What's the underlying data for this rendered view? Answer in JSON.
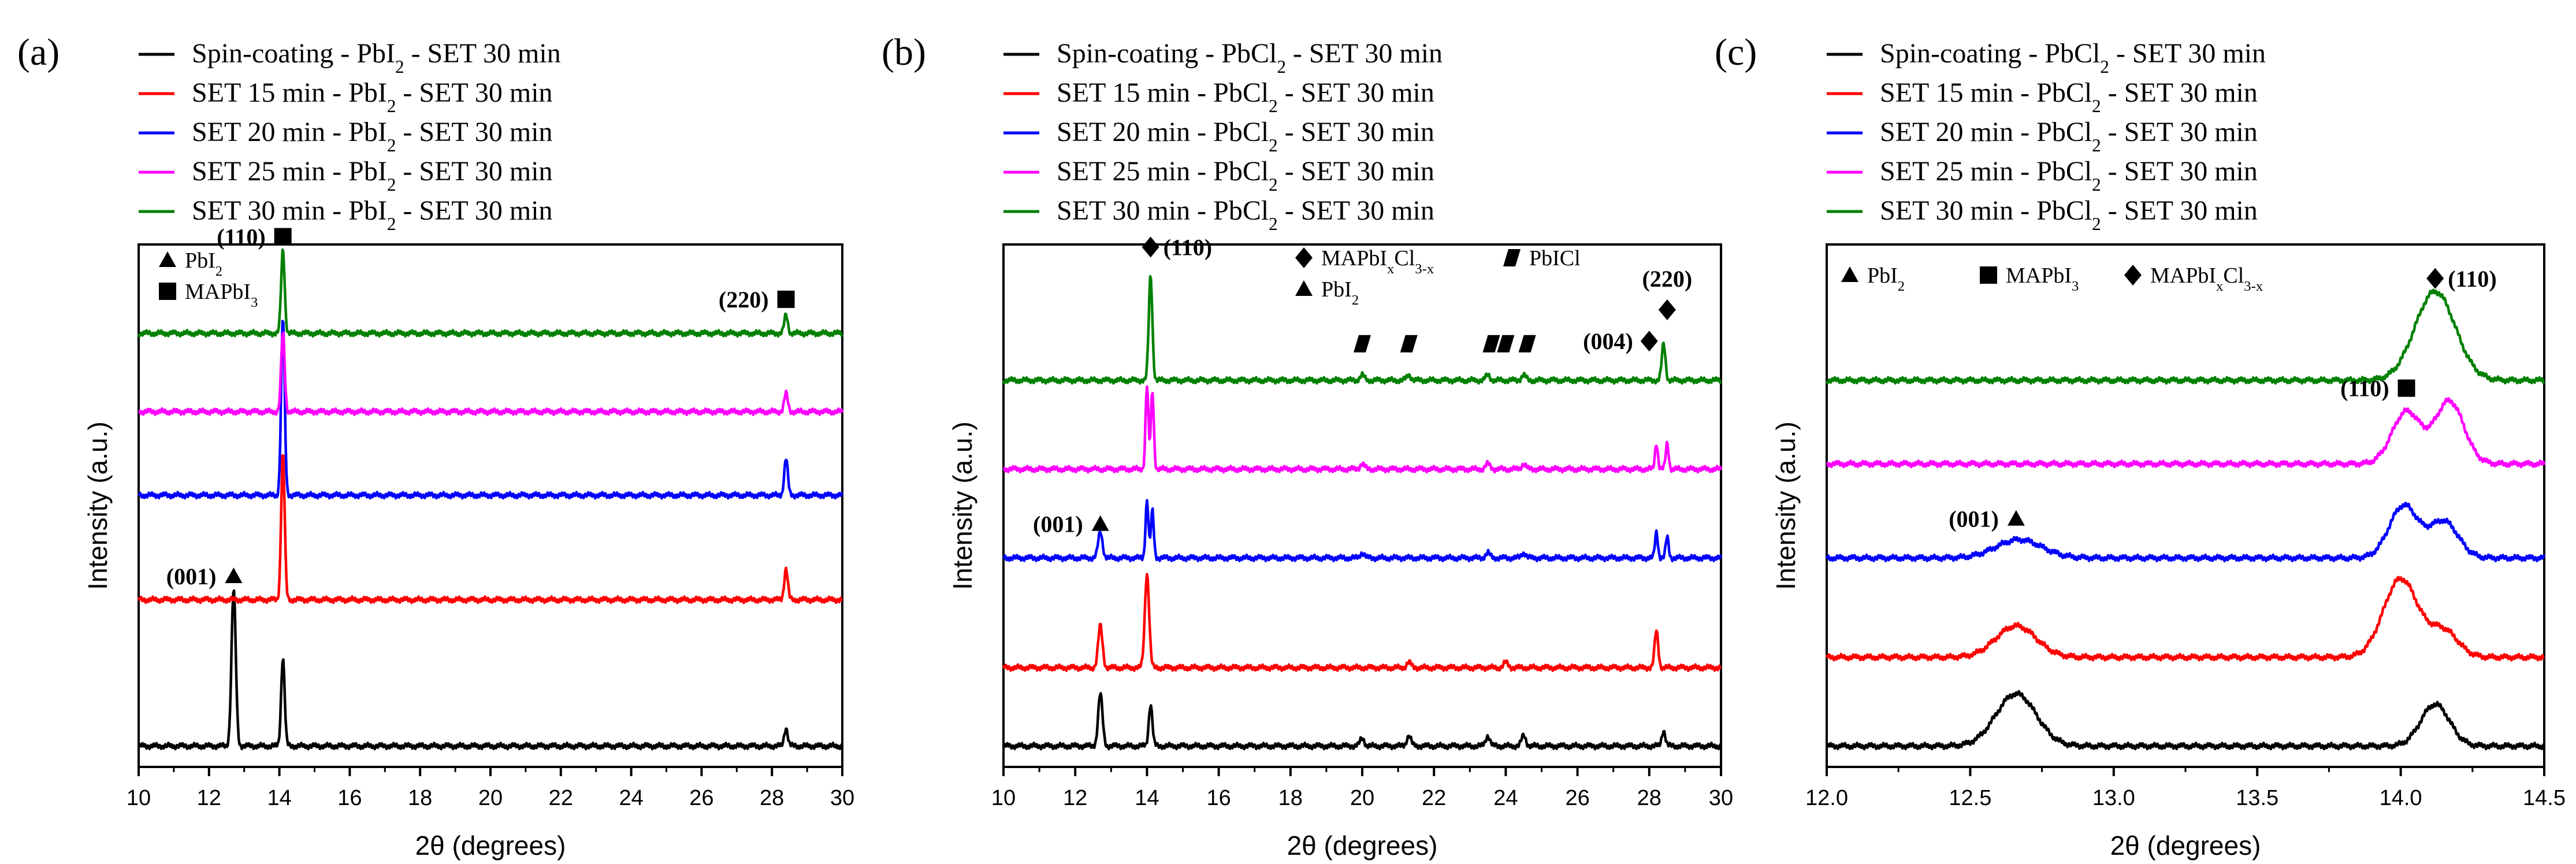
{
  "figure": {
    "domain": "XRD comparison figure"
  },
  "colors": {
    "black": "#000000",
    "red": "#ff0000",
    "blue": "#0000ff",
    "magenta": "#ff00ff",
    "green": "#008000"
  },
  "chart_data": [
    {
      "type": "line",
      "panel_label": "(a)",
      "xlabel": "2θ (degrees)",
      "ylabel": "Intensity (a.u.)",
      "xlim": [
        10,
        30
      ],
      "xticks": [
        "10",
        "12",
        "14",
        "16",
        "18",
        "20",
        "22",
        "24",
        "26",
        "28",
        "30"
      ],
      "series": [
        {
          "name": "Spin-coating - PbI",
          "sub": "2",
          "tail": " - SET 30 min",
          "color": "#000000",
          "peaks": [
            [
              12.7,
              0.3,
              0.06
            ],
            [
              14.1,
              0.17,
              0.05
            ],
            [
              28.4,
              0.035,
              0.05
            ]
          ]
        },
        {
          "name": "SET 15 min - PbI",
          "sub": "2",
          "tail": " - SET 30 min",
          "color": "#ff0000",
          "peaks": [
            [
              14.1,
              0.28,
              0.05
            ],
            [
              28.4,
              0.06,
              0.05
            ]
          ]
        },
        {
          "name": "SET 20 min - PbI",
          "sub": "2",
          "tail": " - SET 30 min",
          "color": "#0000ff",
          "peaks": [
            [
              14.1,
              0.34,
              0.05
            ],
            [
              28.4,
              0.07,
              0.05
            ]
          ]
        },
        {
          "name": "SET 25 min - PbI",
          "sub": "2",
          "tail": " - SET 30 min",
          "color": "#ff00ff",
          "peaks": [
            [
              14.1,
              0.15,
              0.05
            ],
            [
              28.4,
              0.035,
              0.05
            ]
          ]
        },
        {
          "name": "SET 30 min - PbI",
          "sub": "2",
          "tail": " - SET 30 min",
          "color": "#008000",
          "peaks": [
            [
              14.1,
              0.16,
              0.05
            ],
            [
              28.4,
              0.035,
              0.05
            ]
          ]
        }
      ],
      "offsets": [
        0.0,
        0.28,
        0.48,
        0.64,
        0.79
      ],
      "legend": {
        "items": [
          {
            "marker": "triangle",
            "text": "PbI",
            "sub": "2"
          },
          {
            "marker": "square",
            "text": "MAPbI",
            "sub": "3"
          }
        ]
      },
      "annotations": [
        {
          "text": "(110)",
          "marker": "square",
          "x": 14.1,
          "y": 0.975
        },
        {
          "text": "(220)",
          "marker": "square",
          "x": 28.4,
          "y": 0.855
        },
        {
          "text": "(001)",
          "marker": "triangle",
          "x": 12.7,
          "y": 0.325
        }
      ]
    },
    {
      "type": "line",
      "panel_label": "(b)",
      "xlabel": "2θ (degrees)",
      "ylabel": "Intensity (a.u.)",
      "xlim": [
        10,
        30
      ],
      "xticks": [
        "10",
        "12",
        "14",
        "16",
        "18",
        "20",
        "22",
        "24",
        "26",
        "28",
        "30"
      ],
      "series": [
        {
          "name": "Spin-coating - PbCl",
          "sub": "2",
          "tail": " - SET 30 min",
          "color": "#000000",
          "peaks": [
            [
              12.7,
              0.1,
              0.06
            ],
            [
              14.1,
              0.08,
              0.05
            ],
            [
              20.0,
              0.015,
              0.06
            ],
            [
              21.3,
              0.02,
              0.06
            ],
            [
              23.5,
              0.02,
              0.06
            ],
            [
              24.5,
              0.02,
              0.06
            ],
            [
              28.4,
              0.03,
              0.05
            ]
          ]
        },
        {
          "name": "SET 15 min - PbCl",
          "sub": "2",
          "tail": " - SET 30 min",
          "color": "#ff0000",
          "peaks": [
            [
              12.7,
              0.08,
              0.06
            ],
            [
              14.0,
              0.18,
              0.06
            ],
            [
              21.3,
              0.01,
              0.06
            ],
            [
              24.0,
              0.01,
              0.06
            ],
            [
              28.2,
              0.07,
              0.05
            ]
          ]
        },
        {
          "name": "SET 20 min - PbCl",
          "sub": "2",
          "tail": " - SET 30 min",
          "color": "#0000ff",
          "peaks": [
            [
              12.7,
              0.05,
              0.06
            ],
            [
              14.0,
              0.11,
              0.04
            ],
            [
              14.15,
              0.09,
              0.04
            ],
            [
              20.0,
              0.01,
              0.06
            ],
            [
              23.5,
              0.01,
              0.06
            ],
            [
              24.5,
              0.01,
              0.06
            ],
            [
              28.2,
              0.05,
              0.04
            ],
            [
              28.5,
              0.04,
              0.04
            ]
          ]
        },
        {
          "name": "SET 25 min - PbCl",
          "sub": "2",
          "tail": " - SET 30 min",
          "color": "#ff00ff",
          "peaks": [
            [
              14.0,
              0.16,
              0.04
            ],
            [
              14.15,
              0.15,
              0.04
            ],
            [
              20.0,
              0.01,
              0.06
            ],
            [
              23.5,
              0.01,
              0.06
            ],
            [
              24.5,
              0.01,
              0.06
            ],
            [
              28.2,
              0.05,
              0.04
            ],
            [
              28.5,
              0.05,
              0.04
            ]
          ]
        },
        {
          "name": "SET 30 min - PbCl",
          "sub": "2",
          "tail": " - SET 30 min",
          "color": "#008000",
          "peaks": [
            [
              14.1,
              0.2,
              0.05
            ],
            [
              20.0,
              0.01,
              0.06
            ],
            [
              21.3,
              0.01,
              0.06
            ],
            [
              23.5,
              0.01,
              0.06
            ],
            [
              24.5,
              0.01,
              0.06
            ],
            [
              28.4,
              0.07,
              0.05
            ]
          ]
        }
      ],
      "offsets": [
        0.0,
        0.15,
        0.36,
        0.53,
        0.7
      ],
      "legend": {
        "items": [
          {
            "marker": "diamond",
            "text": "MAPbI",
            "sub1": "x",
            "mid": "Cl",
            "sub2": "3-x"
          },
          {
            "marker": "parallelogram",
            "text": "PbICl"
          },
          {
            "marker": "triangle",
            "text": "PbI",
            "sub": "2"
          }
        ]
      },
      "annotations": [
        {
          "text": "(110)",
          "marker": "diamond",
          "x": 14.1,
          "y": 0.955
        },
        {
          "text": "(001)",
          "marker": "triangle",
          "x": 12.7,
          "y": 0.425
        },
        {
          "text": "(004)",
          "marker": "diamond",
          "x": 28.0,
          "y": 0.775
        },
        {
          "text": "(220)",
          "marker": "diamond",
          "x": 28.5,
          "y": 0.835
        }
      ],
      "pbicl_markers": [
        20.0,
        21.3,
        23.6,
        24.0,
        24.6
      ]
    },
    {
      "type": "line",
      "panel_label": "(c)",
      "xlabel": "2θ (degrees)",
      "ylabel": "Intensity (a.u.)",
      "xlim": [
        12.0,
        14.5
      ],
      "xticks": [
        "12.0",
        "12.5",
        "13.0",
        "13.5",
        "14.0",
        "14.5"
      ],
      "series": [
        {
          "name": "Spin-coating - PbCl",
          "sub": "2",
          "tail": " - SET 30 min",
          "color": "#000000",
          "peaks": [
            [
              12.66,
              0.1,
              0.07
            ],
            [
              14.12,
              0.08,
              0.05
            ]
          ]
        },
        {
          "name": "SET 15 min - PbCl",
          "sub": "2",
          "tail": " - SET 30 min",
          "color": "#ff0000",
          "peaks": [
            [
              12.66,
              0.06,
              0.07
            ],
            [
              14.0,
              0.15,
              0.06
            ],
            [
              14.15,
              0.05,
              0.05
            ]
          ]
        },
        {
          "name": "SET 20 min - PbCl",
          "sub": "2",
          "tail": " - SET 30 min",
          "color": "#0000ff",
          "peaks": [
            [
              12.67,
              0.035,
              0.08
            ],
            [
              14.01,
              0.1,
              0.05
            ],
            [
              14.15,
              0.07,
              0.05
            ]
          ]
        },
        {
          "name": "SET 25 min - PbCl",
          "sub": "2",
          "tail": " - SET 30 min",
          "color": "#ff00ff",
          "peaks": [
            [
              14.02,
              0.1,
              0.05
            ],
            [
              14.17,
              0.12,
              0.05
            ]
          ]
        },
        {
          "name": "SET 30 min - PbCl",
          "sub": "2",
          "tail": " - SET 30 min",
          "color": "#008000",
          "peaks": [
            [
              14.12,
              0.17,
              0.07
            ]
          ]
        }
      ],
      "offsets": [
        0.0,
        0.17,
        0.36,
        0.54,
        0.7
      ],
      "legend": {
        "items": [
          {
            "marker": "triangle",
            "text": "PbI",
            "sub": "2"
          },
          {
            "marker": "square",
            "text": "MAPbI",
            "sub": "3"
          },
          {
            "marker": "diamond",
            "text": "MAPbI",
            "sub1": "x",
            "mid": "Cl",
            "sub2": "3-x"
          }
        ]
      },
      "annotations": [
        {
          "text": "(110)",
          "marker": "diamond",
          "x": 14.12,
          "y": 0.895
        },
        {
          "text": "(110)",
          "marker": "square",
          "x": 14.02,
          "y": 0.685
        },
        {
          "text": "(001)",
          "marker": "triangle",
          "x": 12.66,
          "y": 0.435
        }
      ]
    }
  ]
}
